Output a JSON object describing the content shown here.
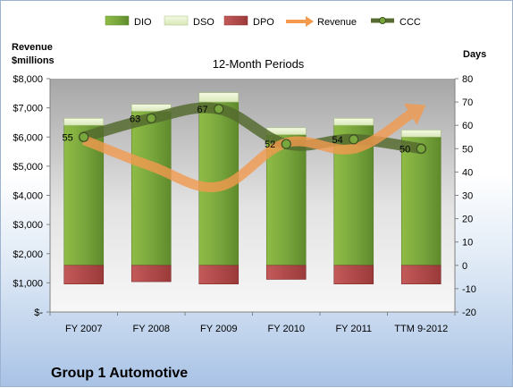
{
  "chart_data": {
    "type": "bar",
    "subtitle": "12-Month Periods",
    "company": "Group 1 Automotive",
    "left_axis_label": [
      "Revenue",
      "$millions"
    ],
    "right_axis_label": "Days",
    "categories": [
      "FY 2007",
      "FY 2008",
      "FY 2009",
      "FY 2010",
      "FY 2011",
      "TTM 9-2012"
    ],
    "left_axis": {
      "min": 0,
      "max": 8000,
      "step": 1000,
      "tick_labels": [
        "$-",
        "$1,000",
        "$2,000",
        "$3,000",
        "$4,000",
        "$5,000",
        "$6,000",
        "$7,000",
        "$8,000"
      ]
    },
    "right_axis": {
      "min": -20,
      "max": 80,
      "step": 10,
      "tick_labels": [
        "-20",
        "-10",
        "0",
        "10",
        "20",
        "30",
        "40",
        "50",
        "60",
        "70",
        "80"
      ]
    },
    "legend": [
      "DIO",
      "DSO",
      "DPO",
      "Revenue",
      "CCC"
    ],
    "legend_position": "top",
    "grid": false,
    "series": [
      {
        "name": "DIO",
        "axis": "right",
        "kind": "stacked-bar",
        "color": "#77a13a",
        "values": [
          60,
          66,
          70,
          56,
          60,
          55
        ]
      },
      {
        "name": "DSO",
        "axis": "right",
        "kind": "stacked-bar",
        "color": "#e4f0c8",
        "values": [
          3,
          3,
          4,
          3,
          3,
          3
        ]
      },
      {
        "name": "DPO",
        "axis": "right",
        "kind": "negative-bar",
        "color": "#b74a4a",
        "values": [
          -8,
          -7,
          -8,
          -6,
          -8,
          -8
        ]
      },
      {
        "name": "Revenue",
        "axis": "left",
        "kind": "smooth-line-arrow",
        "color": "#f39a4f",
        "values": [
          5900,
          5000,
          4300,
          5800,
          5600,
          7000
        ]
      },
      {
        "name": "CCC",
        "axis": "right",
        "kind": "smooth-line",
        "color": "#556b2f",
        "values": [
          55,
          63,
          67,
          52,
          54,
          50
        ],
        "labels": [
          "55",
          "63",
          "67",
          "52",
          "54",
          "50"
        ]
      }
    ]
  }
}
